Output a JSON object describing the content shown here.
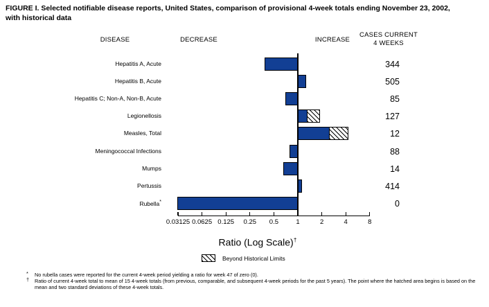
{
  "figure": {
    "title_line1": "FIGURE I. Selected notifiable disease reports, United States, comparison of provisional 4-week totals ending November 23, 2002,",
    "title_line2": "with historical data"
  },
  "headers": {
    "disease": "DISEASE",
    "decrease": "DECREASE",
    "increase": "INCREASE",
    "cases_line1": "CASES CURRENT",
    "cases_line2": "4 WEEKS"
  },
  "chart_data": {
    "type": "bar",
    "orientation": "horizontal",
    "scale": "log2",
    "title": "FIGURE I. Selected notifiable disease reports, United States, comparison of provisional 4-week totals ending November 23, 2002, with historical data",
    "xlabel": "Ratio (Log Scale)",
    "xlabel_superscript": "†",
    "axis": {
      "ticks": [
        0.03125,
        0.0625,
        0.125,
        0.25,
        0.5,
        1,
        2,
        4,
        8
      ],
      "tick_labels": [
        "0.03125",
        "0.0625",
        "0.125",
        "0.25",
        "0.5",
        "1",
        "2",
        "4",
        "8"
      ],
      "range": [
        0.03125,
        8
      ],
      "baseline": 1
    },
    "legend": {
      "label": "Beyond Historical Limits",
      "swatch": "hatched",
      "position": "bottom"
    },
    "rows": [
      {
        "disease": "Hepatitis A, Acute",
        "marker": "",
        "cases": "344",
        "ratio": 0.38,
        "beyond_to": null,
        "clipped": false
      },
      {
        "disease": "Hepatitis B, Acute",
        "marker": "",
        "cases": "505",
        "ratio": 1.27,
        "beyond_to": null,
        "clipped": false
      },
      {
        "disease": "Hepatitis C; Non-A, Non-B, Acute",
        "marker": "",
        "cases": "85",
        "ratio": 0.7,
        "beyond_to": null,
        "clipped": false
      },
      {
        "disease": "Legionellosis",
        "marker": "",
        "cases": "127",
        "ratio": 1.35,
        "beyond_to": 1.9,
        "clipped": false
      },
      {
        "disease": "Measles, Total",
        "marker": "",
        "cases": "12",
        "ratio": 2.55,
        "beyond_to": 4.35,
        "clipped": false
      },
      {
        "disease": "Meningococcal Infections",
        "marker": "",
        "cases": "88",
        "ratio": 0.78,
        "beyond_to": null,
        "clipped": false
      },
      {
        "disease": "Mumps",
        "marker": "",
        "cases": "14",
        "ratio": 0.66,
        "beyond_to": null,
        "clipped": false
      },
      {
        "disease": "Pertussis",
        "marker": "",
        "cases": "414",
        "ratio": 1.12,
        "beyond_to": null,
        "clipped": false
      },
      {
        "disease": "Rubella",
        "marker": "*",
        "cases": "0",
        "ratio": 0.03125,
        "beyond_to": null,
        "clipped": true
      }
    ],
    "colors": {
      "bar_fill": "#123f94",
      "bar_border": "#000000",
      "hatch": "#000000"
    }
  },
  "footnotes": [
    {
      "marker": "*",
      "text": "No rubella cases were reported for the current 4-week period yielding a ratio for week 47 of zero (0)."
    },
    {
      "marker": "†",
      "text": "Ratio of current 4-week total to mean of 15 4-week totals (from previous, comparable, and subsequent 4-week periods for the past 5 years). The point where the hatched area begins is based on the mean and two standard deviations of these 4-week totals."
    }
  ]
}
